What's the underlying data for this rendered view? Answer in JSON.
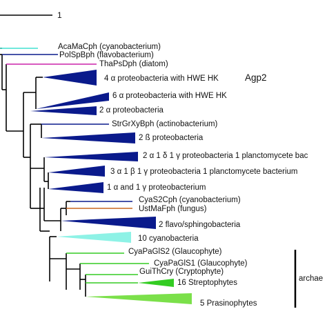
{
  "scale_bar": {
    "label": "1"
  },
  "clade_bar": {
    "label": "archae"
  },
  "colors": {
    "branch": "#000000",
    "cyan": "#40e0d0",
    "navy": "#0a1a8c",
    "magenta": "#cc22aa",
    "orange": "#c8651e",
    "light_cyan": "#8ef2e6",
    "green": "#33cc22",
    "light_green": "#7be04a"
  },
  "taxa": {
    "acamacph": "AcaMaCph (cyanobacterium)",
    "polspbph": "PolSpBph (flavobacterium)",
    "thapsdph": "ThaPsDph (diatom)",
    "alpha4": "4 α proteobacteria with HWE HK",
    "agp2": "Agp2",
    "alpha6": "6 α proteobacteria with HWE HK",
    "alpha2": "2 α proteobacteria",
    "strgrxybph": "StrGrXyBph (actinobacterium)",
    "beta2": "2 ß proteobacteria",
    "mix1": "2 α 1 δ 1 γ proteobacteria 1 planctomycete bac",
    "mix2": "3 α 1 β 1 γ proteobacteria 1 planctomycete bacterium",
    "mix3": "1 α and 1 γ proteobacterium",
    "cyas2cph": "CyaS2Cph (cyanobacterium)",
    "ustmafph": "UstMaFph (fungus)",
    "flavo2": "2 flavo/sphingobacteria",
    "cyano10": "10 cyanobacteria",
    "cyapagls2": "CyaPaGlS2 (Glaucophyte)",
    "cyapagls1": "CyaPaGlS1 (Glaucophyte)",
    "guithcry": "GuiThCry (Cryptophyte)",
    "strepto16": "16 Streptophytes",
    "prasino5": "5 Prasinophytes"
  }
}
